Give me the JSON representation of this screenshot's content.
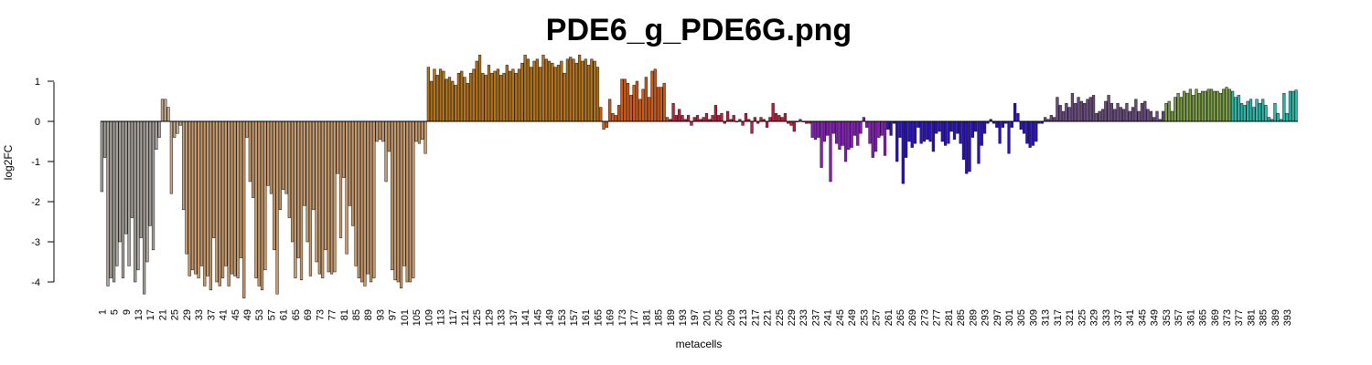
{
  "chart_data": {
    "type": "bar",
    "title": "PDE6_g_PDE6G.png",
    "xlabel": "metacells",
    "ylabel": "log2FC",
    "ylim": [
      -4.4,
      1.6
    ],
    "y_ticks": [
      1,
      0,
      -1,
      -2,
      -3,
      -4
    ],
    "x_tick_labels": [
      1,
      5,
      9,
      13,
      17,
      21,
      25,
      29,
      33,
      37,
      41,
      45,
      49,
      53,
      57,
      61,
      65,
      69,
      73,
      77,
      81,
      85,
      89,
      93,
      97,
      101,
      105,
      109,
      113,
      117,
      121,
      125,
      129,
      133,
      137,
      141,
      145,
      149,
      153,
      157,
      161,
      165,
      169,
      173,
      177,
      181,
      185,
      189,
      193,
      197,
      201,
      205,
      209,
      213,
      217,
      221,
      225,
      229,
      233,
      237,
      241,
      245,
      249,
      253,
      257,
      261,
      265,
      269,
      273,
      277,
      281,
      285,
      289,
      293,
      297,
      301,
      305,
      309,
      313,
      317,
      321,
      325,
      329,
      333,
      337,
      341,
      345,
      349,
      353,
      357,
      361,
      365,
      369,
      373,
      377,
      381,
      385,
      389,
      393
    ],
    "categories_range": [
      1,
      396
    ],
    "grid": false,
    "segments": [
      {
        "from": 1,
        "to": 20,
        "color": "#a8a39c",
        "values": [
          -1.75,
          -0.9,
          -4.1,
          -3.9,
          -4.0,
          -3.6,
          -3.0,
          -3.9,
          -2.8,
          -3.6,
          -2.4,
          -4.0,
          -3.7,
          -2.9,
          -4.3,
          -3.5,
          -2.6,
          -3.2,
          -0.7,
          -0.4
        ]
      },
      {
        "from": 21,
        "to": 28,
        "color": "#c4a98a",
        "values": [
          0.55,
          0.55,
          0.35,
          -1.8,
          -0.4,
          -0.3,
          -0.1,
          -2.2
        ]
      },
      {
        "from": 29,
        "to": 108,
        "color": "#c99a6a",
        "values": [
          -3.3,
          -3.85,
          -3.7,
          -3.8,
          -3.9,
          -3.6,
          -4.1,
          -3.85,
          -4.2,
          -2.9,
          -4.0,
          -4.1,
          -3.9,
          -3.6,
          -4.1,
          -3.8,
          -3.85,
          -3.9,
          -3.4,
          -4.4,
          -0.4,
          -1.5,
          -1.9,
          -3.9,
          -4.1,
          -4.2,
          -3.7,
          -1.6,
          -1.8,
          -3.2,
          -4.3,
          -2.2,
          -1.7,
          -1.8,
          -2.4,
          -3.0,
          -3.9,
          -3.4,
          -3.95,
          -2.1,
          -3.0,
          -3.85,
          -2.2,
          -3.5,
          -3.8,
          -3.9,
          -3.2,
          -3.75,
          -3.8,
          -3.75,
          -1.3,
          -2.9,
          -1.4,
          -3.3,
          -2.1,
          -2.6,
          -3.6,
          -3.9,
          -4.0,
          -4.1,
          -3.8,
          -4.0,
          -3.9,
          -0.5,
          -0.45,
          -0.5,
          -1.5,
          -0.75,
          -3.7,
          -3.95,
          -4.0,
          -4.15,
          -3.6,
          -4.0,
          -4.0,
          -3.9,
          -0.5,
          -0.55,
          -0.45,
          -0.8
        ]
      },
      {
        "from": 109,
        "to": 165,
        "color": "#b8720e",
        "values": [
          1.35,
          1.0,
          1.3,
          1.15,
          1.3,
          1.25,
          1.05,
          1.1,
          1.0,
          0.9,
          1.2,
          1.25,
          1.1,
          0.95,
          1.2,
          1.3,
          1.5,
          1.65,
          1.2,
          1.15,
          1.4,
          1.2,
          1.25,
          1.3,
          1.15,
          1.2,
          1.4,
          1.25,
          1.3,
          1.2,
          1.3,
          1.45,
          1.65,
          1.55,
          1.35,
          1.5,
          1.55,
          1.35,
          1.65,
          1.55,
          1.5,
          1.45,
          1.35,
          1.4,
          1.5,
          1.2,
          1.55,
          1.6,
          1.55,
          1.45,
          1.65,
          1.5,
          1.55,
          1.4,
          1.55,
          1.5,
          1.35
        ]
      },
      {
        "from": 166,
        "to": 188,
        "color": "#d85a10",
        "values": [
          0.35,
          -0.2,
          -0.15,
          0.55,
          0.2,
          0.15,
          0.4,
          1.05,
          1.05,
          0.95,
          0.65,
          0.9,
          1.0,
          0.55,
          0.8,
          1.1,
          0.6,
          1.25,
          1.3,
          0.85,
          0.85,
          0.95,
          0.1
        ]
      },
      {
        "from": 189,
        "to": 235,
        "color": "#c81a3a",
        "values": [
          0.05,
          0.45,
          0.15,
          0.3,
          0.15,
          0.05,
          0.15,
          -0.1,
          0.1,
          0.15,
          0.05,
          0.1,
          0.2,
          0.05,
          0.15,
          0.4,
          0.15,
          0.2,
          -0.05,
          0.25,
          0.05,
          0.15,
          0.0,
          0.05,
          -0.1,
          0.2,
          0.05,
          -0.3,
          0.1,
          -0.05,
          0.1,
          0.05,
          -0.15,
          0.1,
          0.45,
          0.2,
          0.15,
          0.1,
          0.2,
          -0.05,
          -0.1,
          -0.25,
          0.0,
          0.05,
          0.0,
          -0.05,
          -0.05
        ]
      },
      {
        "from": 236,
        "to": 260,
        "color": "#8a1ac0",
        "values": [
          -0.4,
          -0.45,
          -0.4,
          -1.15,
          -0.5,
          -0.35,
          -1.5,
          -0.3,
          -0.55,
          -0.7,
          -0.6,
          -1.0,
          -0.7,
          -0.65,
          -0.35,
          -0.6,
          -0.3,
          0.1,
          -0.15,
          -0.55,
          -0.9,
          -0.75,
          -0.4,
          -0.35,
          -0.85
        ]
      },
      {
        "from": 261,
        "to": 312,
        "color": "#2a0fc8",
        "values": [
          -0.2,
          -0.35,
          -0.05,
          -1.0,
          -0.4,
          -1.55,
          -0.9,
          -0.5,
          -0.65,
          -0.55,
          -0.15,
          -0.55,
          -0.5,
          -0.45,
          -0.5,
          -0.75,
          -0.3,
          -0.25,
          -0.5,
          -0.6,
          -0.55,
          -0.25,
          -0.45,
          -0.3,
          -0.55,
          -0.95,
          -1.3,
          -1.25,
          -0.4,
          -0.25,
          -1.05,
          -0.6,
          -0.3,
          -0.05,
          0.05,
          -0.05,
          -0.15,
          -0.55,
          -0.15,
          -0.05,
          -0.8,
          -0.15,
          0.45,
          0.2,
          -0.2,
          -0.3,
          -0.55,
          -0.65,
          -0.6,
          -0.5,
          -0.05,
          -0.05
        ]
      },
      {
        "from": 313,
        "to": 352,
        "color": "#6a4a80",
        "values": [
          0.1,
          0.05,
          0.15,
          0.1,
          0.6,
          0.4,
          0.25,
          0.45,
          0.35,
          0.7,
          0.45,
          0.6,
          0.5,
          0.45,
          0.55,
          0.6,
          0.65,
          0.2,
          0.25,
          0.3,
          0.5,
          0.65,
          0.45,
          0.3,
          0.45,
          0.35,
          0.3,
          0.45,
          0.25,
          0.35,
          0.55,
          0.25,
          0.45,
          0.5,
          0.3,
          0.25,
          0.1,
          0.25,
          0.05,
          0.25
        ]
      },
      {
        "from": 353,
        "to": 374,
        "color": "#7aa040",
        "values": [
          0.45,
          0.5,
          0.25,
          0.6,
          0.7,
          0.6,
          0.75,
          0.7,
          0.8,
          0.65,
          0.8,
          0.7,
          0.75,
          0.75,
          0.8,
          0.8,
          0.75,
          0.75,
          0.7,
          0.8,
          0.85,
          0.8
        ]
      },
      {
        "from": 375,
        "to": 396,
        "color": "#20c0b0",
        "values": [
          0.75,
          0.6,
          0.65,
          0.45,
          0.4,
          0.5,
          0.55,
          0.35,
          0.55,
          0.45,
          0.55,
          0.4,
          0.1,
          0.05,
          0.45,
          0.2,
          0.05,
          0.7,
          0.2,
          0.75,
          0.75,
          0.78
        ]
      }
    ]
  }
}
